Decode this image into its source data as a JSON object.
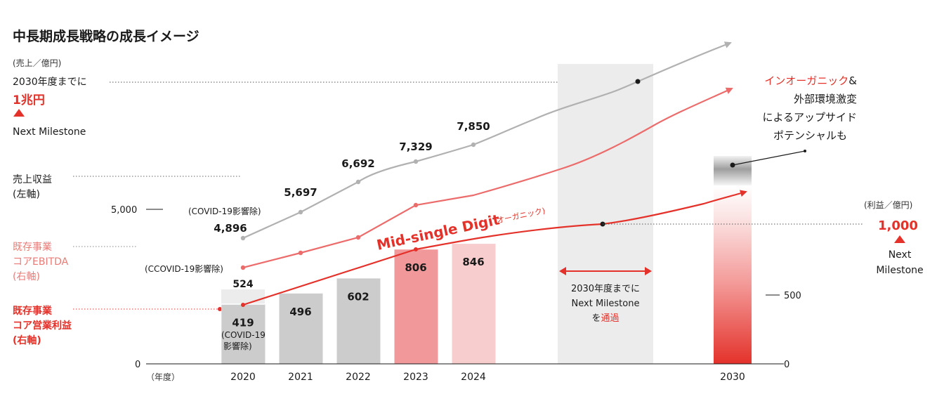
{
  "title": "中長期成長戦略の成長イメージ",
  "colors": {
    "revenue_line": "#b1b1b1",
    "ebitda_line": "#ec6b6b",
    "op_line": "#e4322b",
    "accent_red": "#e4322b",
    "pink_label": "#ea7a76",
    "bar_grey": "#cccccc",
    "bar_2020_total": "#ececec",
    "bar_2023": "#f1999a",
    "bar_2024": "#f8cdcd",
    "milestone_band": "#ececec"
  },
  "left_axis": {
    "unit": "(売上／億円)",
    "tick_5000": "5,000",
    "tick_0": "0",
    "target_prefix": "2030年度までに",
    "target_value": "1兆円",
    "target_sub": "Next Milestone",
    "year_unit": "（年度）"
  },
  "right_axis": {
    "unit": "(利益／億円)",
    "target_value": "1,000",
    "target_sub1": "Next",
    "target_sub2": "Milestone",
    "tick_500": "500",
    "tick_0": "0"
  },
  "legend": {
    "revenue_line1": "売上収益",
    "revenue_line2": "(左軸)",
    "ebitda_line1": "既存事業",
    "ebitda_line2": "コアEBITDA",
    "ebitda_line3": "(右軸)",
    "op_line1": "既存事業",
    "op_line2": "コア営業利益",
    "op_line3": "(右軸)"
  },
  "annotations": {
    "covid_revenue": "(COVID-19影響除)",
    "covid_ebitda": "(CCOVID-19影響除)",
    "covid_op_line1": "(COVID-19",
    "covid_op_line2": "影響除)",
    "mid_single_digit": "Mid-single Digit",
    "organic_small": "(オーガニック)",
    "upside_red": "インオーガニック",
    "upside_amp": "&",
    "upside_line2": "外部環境激変",
    "upside_line3": "によるアップサイド",
    "upside_line4": "ポテンシャルも",
    "milestone_band_line1": "2030年度までに",
    "milestone_band_line2": "Next Milestone",
    "milestone_band_line3_pre": "を",
    "milestone_band_line3_red": "通過"
  },
  "chart_data": {
    "type": "bar",
    "title": "中長期成長戦略の成長イメージ",
    "categories": [
      "2020",
      "2021",
      "2022",
      "2023",
      "2024",
      "2030"
    ],
    "series": [
      {
        "name": "売上収益",
        "axis": "left",
        "type": "line",
        "values": [
          4896,
          5697,
          6692,
          7329,
          7850,
          null
        ],
        "value_labels": [
          "4,896",
          "5,697",
          "6,692",
          "7,329",
          "7,850"
        ]
      },
      {
        "name": "既存事業 コア営業利益",
        "axis": "right",
        "type": "bar",
        "values": [
          419,
          496,
          602,
          806,
          846,
          null
        ],
        "value_labels": [
          "419",
          "496",
          "602",
          "806",
          "846"
        ]
      },
      {
        "name": "既存事業 コアEBITDA",
        "axis": "right",
        "type": "line",
        "values": [
          null,
          null,
          null,
          null,
          null,
          null
        ]
      }
    ],
    "extra_bar_2020": {
      "value": 524,
      "label": "524"
    },
    "targets": {
      "revenue_2030": "1兆円",
      "profit_2030": "1,000"
    },
    "y_left_ticks": [
      "0",
      "5,000"
    ],
    "y_right_ticks": [
      "0",
      "500"
    ],
    "y_right_range": [
      0,
      1100
    ]
  }
}
